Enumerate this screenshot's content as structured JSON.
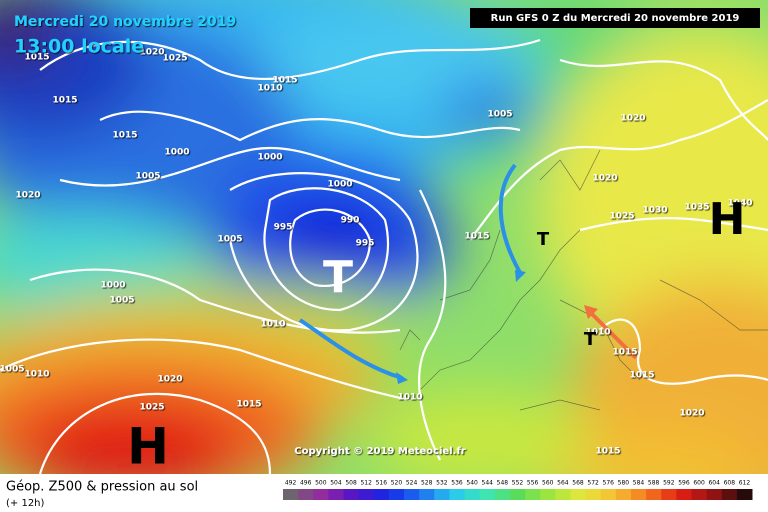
{
  "header": {
    "title": "Mercredi 20 novembre 2019",
    "time": "13:00 locale",
    "run": "Run GFS 0 Z du Mercredi 20 novembre 2019"
  },
  "pressure_labels": [
    "1015",
    "1025",
    "1020",
    "1015",
    "1015",
    "1000",
    "1005",
    "1000",
    "1000",
    "1020",
    "1005",
    "995",
    "990",
    "995",
    "1015",
    "1005",
    "1020",
    "1020",
    "1025",
    "1030",
    "1035",
    "1040",
    "1000",
    "1005",
    "1010",
    "1005",
    "1010",
    "1020",
    "1025",
    "1015",
    "1010",
    "1015",
    "1015",
    "1020",
    "1015",
    "1015",
    "1010",
    "1010"
  ],
  "systems": [
    "H",
    "T",
    "H",
    "T",
    "T"
  ],
  "copyright": "Copyright © 2019 Meteociel.fr",
  "legend": {
    "title": "Géop. Z500 & pression au sol",
    "subtitle": "(+ 12h)",
    "scale": [
      492,
      496,
      500,
      504,
      508,
      512,
      516,
      520,
      524,
      528,
      532,
      536,
      540,
      544,
      548,
      552,
      556,
      560,
      564,
      568,
      572,
      576,
      580,
      584,
      588,
      592,
      596,
      600,
      604,
      608,
      612
    ]
  }
}
